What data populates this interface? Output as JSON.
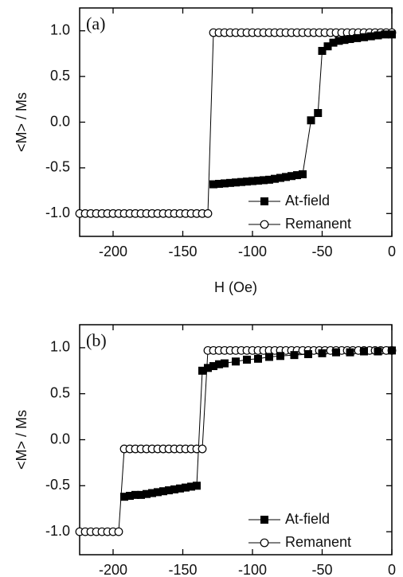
{
  "chart_data": [
    {
      "type": "line",
      "panel_label": "(a)",
      "ylabel": "<M> / Ms",
      "xlabel": "H (Oe)",
      "xlim": [
        -224,
        0
      ],
      "ylim": [
        -1.25,
        1.25
      ],
      "xticks": [
        -200,
        -150,
        -100,
        -50,
        0
      ],
      "yticks": [
        {
          "value": -1,
          "label": "-1.0"
        },
        -0.5,
        {
          "value": 0,
          "label": "0.0"
        },
        0.5,
        {
          "value": 1,
          "label": "1.0"
        }
      ],
      "legend": "lower right",
      "series": [
        {
          "name": "At-field",
          "color": "#000000",
          "marker": "square",
          "x": [
            -128,
            -124,
            -120,
            -116,
            -112,
            -108,
            -104,
            -100,
            -96,
            -92,
            -88,
            -84,
            -80,
            -76,
            -72,
            -68,
            -64,
            -58,
            -53,
            -50,
            -46,
            -42,
            -38,
            -34,
            -30,
            -25,
            -20,
            -15,
            -10,
            -5,
            0
          ],
          "values": [
            -0.68,
            -0.675,
            -0.67,
            -0.665,
            -0.66,
            -0.655,
            -0.65,
            -0.645,
            -0.64,
            -0.635,
            -0.63,
            -0.62,
            -0.61,
            -0.6,
            -0.59,
            -0.58,
            -0.57,
            0.02,
            0.1,
            0.78,
            0.83,
            0.87,
            0.89,
            0.9,
            0.91,
            0.92,
            0.93,
            0.94,
            0.95,
            0.96,
            0.96
          ]
        },
        {
          "name": "Remanent",
          "color": "#000000",
          "marker": "circle",
          "x": [
            -224,
            -220,
            -216,
            -212,
            -208,
            -204,
            -200,
            -196,
            -192,
            -188,
            -184,
            -180,
            -176,
            -172,
            -168,
            -164,
            -160,
            -156,
            -152,
            -148,
            -144,
            -140,
            -136,
            -132,
            -128,
            -124,
            -120,
            -116,
            -112,
            -108,
            -104,
            -100,
            -96,
            -92,
            -88,
            -84,
            -80,
            -76,
            -72,
            -68,
            -64,
            -60,
            -56,
            -52,
            -48,
            -44,
            -40,
            -36,
            -32,
            -28,
            -24,
            -20,
            -16,
            -12,
            -8,
            -4,
            0
          ],
          "values": [
            -1,
            -1,
            -1,
            -1,
            -1,
            -1,
            -1,
            -1,
            -1,
            -1,
            -1,
            -1,
            -1,
            -1,
            -1,
            -1,
            -1,
            -1,
            -1,
            -1,
            -1,
            -1,
            -1,
            -1,
            0.98,
            0.98,
            0.98,
            0.98,
            0.98,
            0.98,
            0.98,
            0.98,
            0.98,
            0.98,
            0.98,
            0.98,
            0.98,
            0.98,
            0.98,
            0.98,
            0.98,
            0.98,
            0.98,
            0.98,
            0.98,
            0.98,
            0.98,
            0.98,
            0.98,
            0.98,
            0.98,
            0.98,
            0.98,
            0.98,
            0.98,
            0.98,
            0.98
          ]
        }
      ]
    },
    {
      "type": "line",
      "panel_label": "(b)",
      "ylabel": "<M> / Ms",
      "xlim": [
        -224,
        0
      ],
      "ylim": [
        -1.25,
        1.25
      ],
      "xticks": [
        -200,
        -150,
        -100,
        -50,
        0
      ],
      "yticks": [
        {
          "value": -1,
          "label": "-1.0"
        },
        -0.5,
        {
          "value": 0,
          "label": "0.0"
        },
        0.5,
        {
          "value": 1,
          "label": "1.0"
        }
      ],
      "legend": "lower right",
      "series": [
        {
          "name": "At-field",
          "color": "#000000",
          "marker": "square",
          "x": [
            -192,
            -188,
            -184,
            -180,
            -176,
            -172,
            -168,
            -164,
            -160,
            -156,
            -152,
            -148,
            -144,
            -140,
            -136,
            -132,
            -128,
            -124,
            -120,
            -112,
            -104,
            -96,
            -88,
            -80,
            -70,
            -60,
            -50,
            -40,
            -30,
            -20,
            -10,
            0
          ],
          "values": [
            -0.62,
            -0.61,
            -0.6,
            -0.6,
            -0.59,
            -0.58,
            -0.57,
            -0.56,
            -0.55,
            -0.54,
            -0.53,
            -0.52,
            -0.51,
            -0.5,
            0.75,
            0.78,
            0.8,
            0.82,
            0.83,
            0.85,
            0.87,
            0.88,
            0.9,
            0.91,
            0.92,
            0.93,
            0.94,
            0.95,
            0.95,
            0.96,
            0.96,
            0.97
          ]
        },
        {
          "name": "Remanent",
          "color": "#000000",
          "marker": "circle",
          "x": [
            -224,
            -220,
            -216,
            -212,
            -208,
            -204,
            -200,
            -196,
            -192,
            -188,
            -184,
            -180,
            -176,
            -172,
            -168,
            -164,
            -160,
            -156,
            -152,
            -148,
            -144,
            -140,
            -136,
            -132,
            -128,
            -124,
            -120,
            -116,
            -112,
            -108,
            -104,
            -100,
            -96,
            -92,
            -88,
            -84,
            -80,
            -76,
            -72,
            -68,
            -64,
            -60,
            -56,
            -52,
            -48,
            -44,
            -40,
            -36,
            -32,
            -28,
            -24,
            -20,
            -16,
            -12,
            -8,
            -4,
            0
          ],
          "values": [
            -1,
            -1,
            -1,
            -1,
            -1,
            -1,
            -1,
            -1,
            -0.1,
            -0.1,
            -0.1,
            -0.1,
            -0.1,
            -0.1,
            -0.1,
            -0.1,
            -0.1,
            -0.1,
            -0.1,
            -0.1,
            -0.1,
            -0.1,
            -0.1,
            0.97,
            0.97,
            0.97,
            0.97,
            0.97,
            0.97,
            0.97,
            0.97,
            0.97,
            0.97,
            0.97,
            0.97,
            0.97,
            0.97,
            0.97,
            0.97,
            0.97,
            0.97,
            0.97,
            0.97,
            0.97,
            0.97,
            0.97,
            0.97,
            0.97,
            0.97,
            0.97,
            0.97,
            0.97,
            0.97,
            0.97,
            0.97,
            0.97,
            0.97
          ]
        }
      ]
    }
  ]
}
